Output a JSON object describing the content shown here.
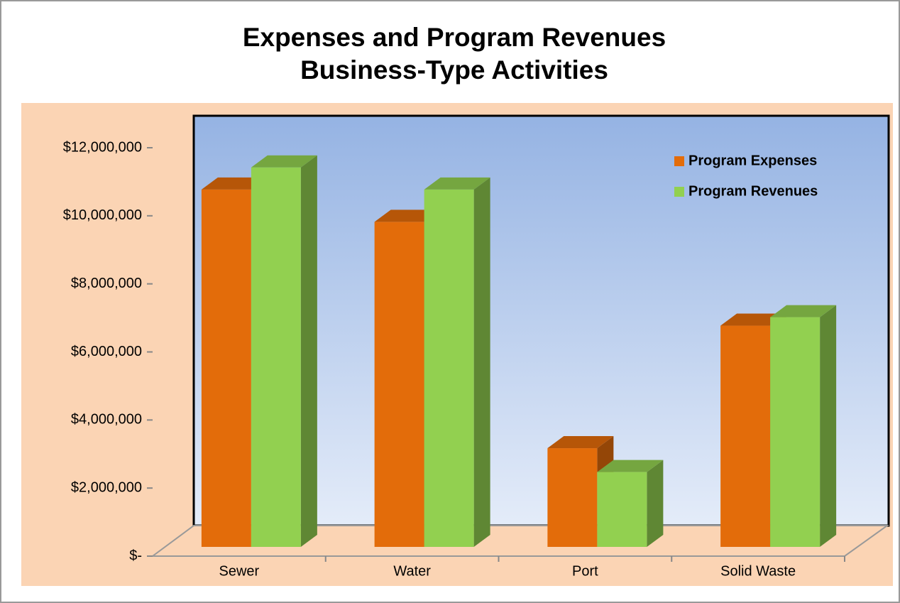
{
  "chart_data": {
    "type": "bar3d",
    "title": "Expenses and Program Revenues",
    "subtitle": "Business-Type Activities",
    "categories": [
      "Sewer",
      "Water",
      "Port",
      "Solid Waste"
    ],
    "series": [
      {
        "name": "Program Expenses",
        "color": "#e36c0a",
        "values": [
          10500000,
          9550000,
          2900000,
          6500000
        ]
      },
      {
        "name": "Program Revenues",
        "color": "#92d050",
        "values": [
          11150000,
          10500000,
          2200000,
          6750000
        ]
      }
    ],
    "ylim": [
      0,
      12000000
    ],
    "yticks": [
      {
        "value": 0,
        "label": "$-"
      },
      {
        "value": 2000000,
        "label": "$2,000,000"
      },
      {
        "value": 4000000,
        "label": "$4,000,000"
      },
      {
        "value": 6000000,
        "label": "$6,000,000"
      },
      {
        "value": 8000000,
        "label": "$8,000,000"
      },
      {
        "value": 10000000,
        "label": "$10,000,000"
      },
      {
        "value": 12000000,
        "label": "$12,000,000"
      }
    ],
    "legend": "top-right"
  }
}
